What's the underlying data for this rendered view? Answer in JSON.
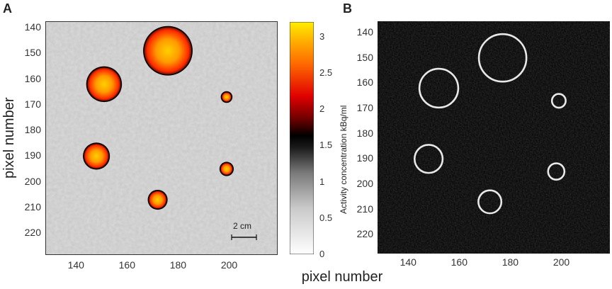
{
  "panels": {
    "a": {
      "letter": "A",
      "ylabel": "pixel number",
      "y_ticks": [
        "140",
        "150",
        "160",
        "170",
        "180",
        "190",
        "200",
        "210",
        "220"
      ],
      "x_ticks": [
        "140",
        "160",
        "180",
        "200"
      ],
      "scalebar_label": "2 cm",
      "hot_spots": [
        {
          "x": 176,
          "y": 149,
          "r": 9.2
        },
        {
          "x": 151,
          "y": 162,
          "r": 6.5
        },
        {
          "x": 148,
          "y": 190,
          "r": 4.8
        },
        {
          "x": 172,
          "y": 207,
          "r": 3.4
        },
        {
          "x": 199,
          "y": 167,
          "r": 1.8
        },
        {
          "x": 199,
          "y": 195,
          "r": 2.3
        }
      ],
      "colorbar": {
        "ticks": [
          "3",
          "2.5",
          "2",
          "1.5",
          "1",
          "0.5",
          "0"
        ],
        "range": [
          0,
          3.2
        ]
      }
    },
    "b": {
      "letter": "B",
      "ylabel": "Activity concentration kBq/ml",
      "y_ticks": [
        "140",
        "150",
        "160",
        "170",
        "180",
        "190",
        "200",
        "210",
        "220"
      ],
      "x_ticks": [
        "140",
        "160",
        "180",
        "200"
      ],
      "rings": [
        {
          "x": 177,
          "y": 150,
          "r": 9.3
        },
        {
          "x": 152,
          "y": 162,
          "r": 7.6
        },
        {
          "x": 148,
          "y": 190,
          "r": 5.5
        },
        {
          "x": 172,
          "y": 207,
          "r": 4.5
        },
        {
          "x": 199,
          "y": 167,
          "r": 2.7
        },
        {
          "x": 198,
          "y": 195,
          "r": 3.2
        }
      ]
    }
  },
  "shared_xlabel": "pixel number",
  "colors": {
    "ring": "#e8e8e8",
    "background_b": "#0a0a0a"
  }
}
